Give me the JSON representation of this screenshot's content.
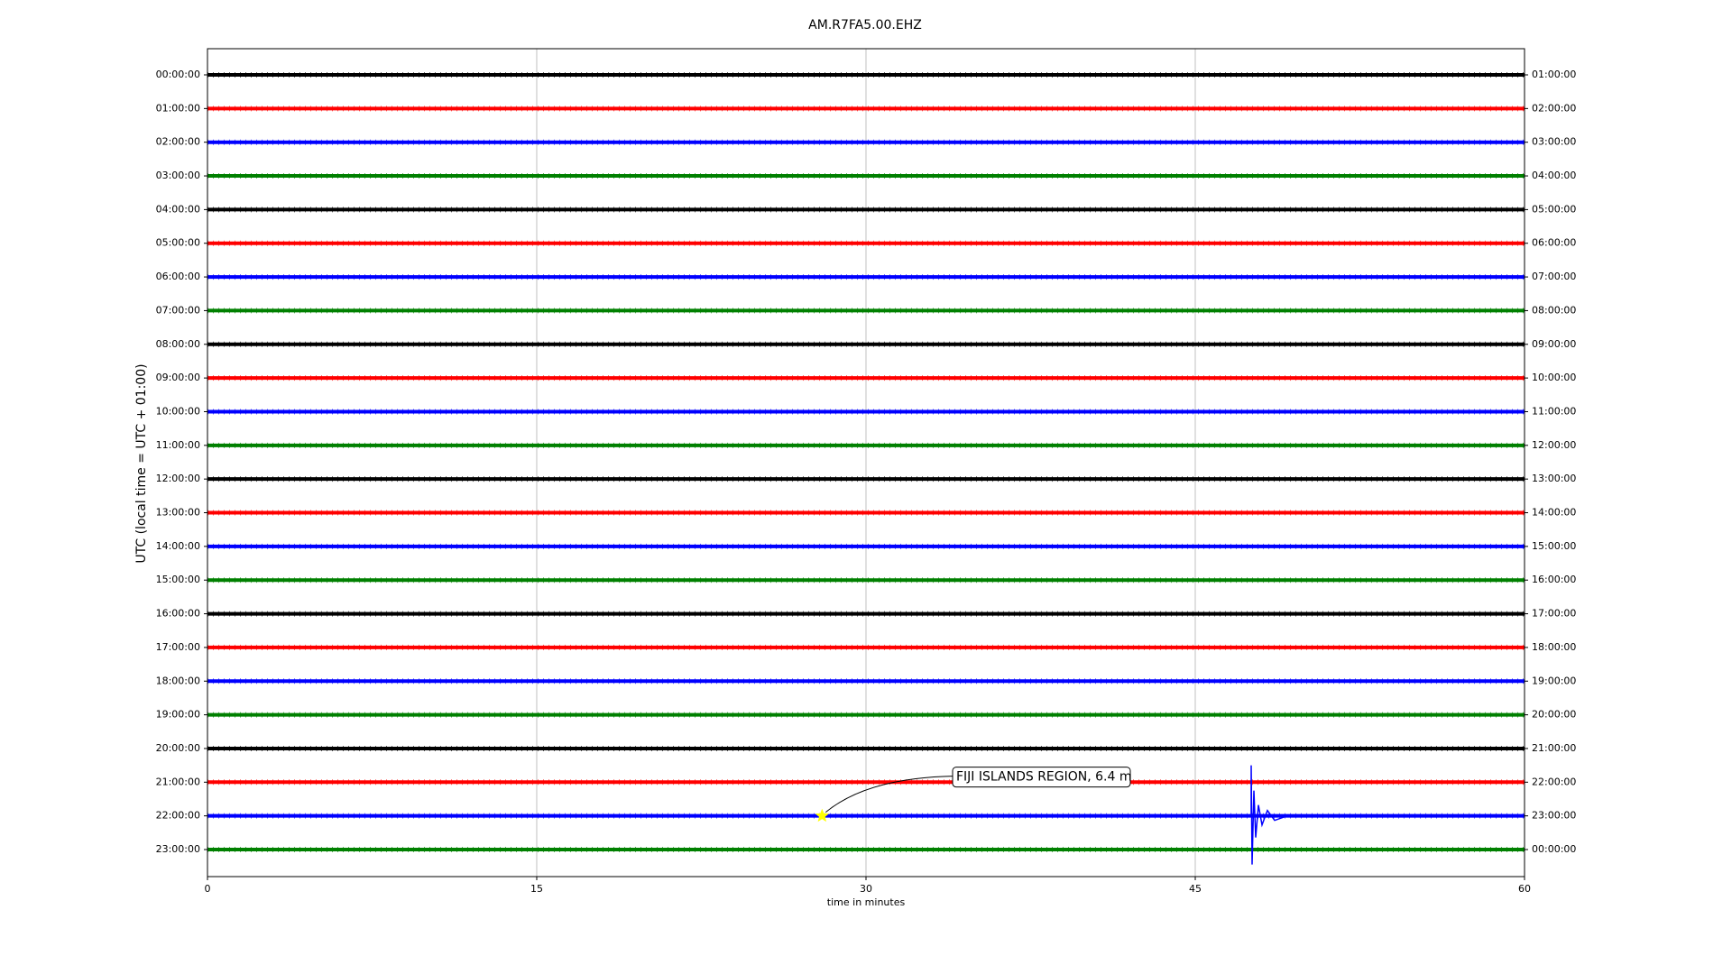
{
  "chart_data": {
    "type": "dayplot",
    "title": "AM.R7FA5.00.EHZ",
    "x_label": "time in minutes",
    "y_label": "UTC (local time = UTC + 01:00)",
    "xlim": [
      0,
      60
    ],
    "xticks": [
      0,
      15,
      30,
      45,
      60
    ],
    "grid": true,
    "colors": [
      "#000000",
      "#ff0000",
      "#0000ff",
      "#008000"
    ],
    "rows": [
      "00:00:00",
      "01:00:00",
      "02:00:00",
      "03:00:00",
      "04:00:00",
      "05:00:00",
      "06:00:00",
      "07:00:00",
      "08:00:00",
      "09:00:00",
      "10:00:00",
      "11:00:00",
      "12:00:00",
      "13:00:00",
      "14:00:00",
      "15:00:00",
      "16:00:00",
      "17:00:00",
      "18:00:00",
      "19:00:00",
      "20:00:00",
      "21:00:00",
      "22:00:00",
      "23:00:00"
    ],
    "right_labels": [
      "01:00:00",
      "02:00:00",
      "03:00:00",
      "04:00:00",
      "05:00:00",
      "06:00:00",
      "07:00:00",
      "08:00:00",
      "09:00:00",
      "10:00:00",
      "11:00:00",
      "12:00:00",
      "13:00:00",
      "14:00:00",
      "15:00:00",
      "16:00:00",
      "17:00:00",
      "18:00:00",
      "19:00:00",
      "20:00:00",
      "21:00:00",
      "22:00:00",
      "23:00:00",
      "00:00:00"
    ],
    "event": {
      "text": "FIJI ISLANDS REGION, 6.4 m",
      "row": 22,
      "minute": 28
    }
  }
}
